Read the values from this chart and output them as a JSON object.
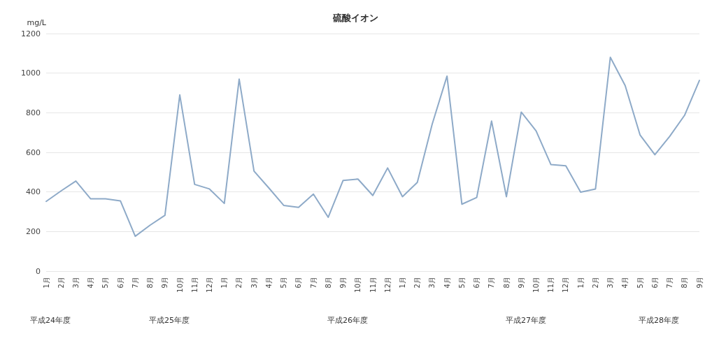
{
  "chart_data": {
    "type": "line",
    "title": "硫酸イオン",
    "ylabel": "mg/L",
    "categories": [
      "1月",
      "2月",
      "3月",
      "4月",
      "5月",
      "6月",
      "7月",
      "8月",
      "9月",
      "10月",
      "11月",
      "12月",
      "1月",
      "2月",
      "3月",
      "4月",
      "5月",
      "6月",
      "7月",
      "8月",
      "9月",
      "10月",
      "11月",
      "12月",
      "1月",
      "2月",
      "3月",
      "4月",
      "5月",
      "6月",
      "7月",
      "8月",
      "9月",
      "10月",
      "11月",
      "12月",
      "1月",
      "2月",
      "3月",
      "4月",
      "5月",
      "6月",
      "7月",
      "8月",
      "9月"
    ],
    "series": [
      {
        "color": "#8eaac8",
        "values": [
          352,
          405,
          455,
          365,
          365,
          355,
          176,
          232,
          282,
          890,
          438,
          415,
          342,
          970,
          505,
          420,
          332,
          322,
          389,
          272,
          458,
          465,
          382,
          521,
          376,
          448,
          742,
          985,
          338,
          372,
          758,
          376,
          803,
          708,
          538,
          532,
          399,
          415,
          1080,
          937,
          688,
          588,
          681,
          787,
          963
        ]
      }
    ],
    "ylim": [
      0,
      1200
    ],
    "yticks": [
      0,
      200,
      400,
      600,
      800,
      1000,
      1200
    ],
    "grid": "y",
    "marker": "none",
    "line_style": "solid",
    "annotations": [
      "平成24年度",
      "平成25年度",
      "平成26年度",
      "平成27年度",
      "平成28年度"
    ]
  }
}
